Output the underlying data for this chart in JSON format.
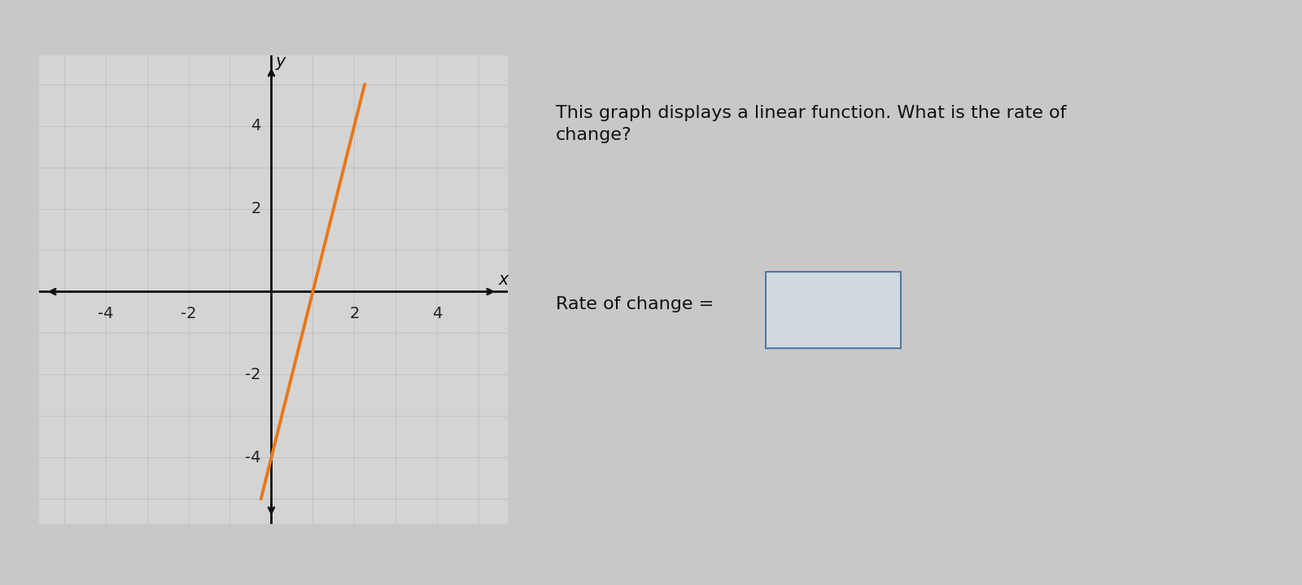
{
  "question_text": "This graph displays a linear function. What is the rate of\nchange?",
  "rate_label": "Rate of change =",
  "slope": 4,
  "y_intercept": -4,
  "x_range": [
    -5,
    5
  ],
  "y_range": [
    -5,
    5
  ],
  "x_ticks": [
    -4,
    -2,
    2,
    4
  ],
  "y_ticks": [
    -4,
    -2,
    2,
    4
  ],
  "line_color": "#E8771A",
  "line_width": 2.8,
  "grid_color": "#bbbbbb",
  "bg_color": "#c8c8c8",
  "card_color": "#d4d4d4",
  "axis_color": "#111111",
  "tick_label_color": "#222222",
  "tick_fontsize": 14,
  "axis_label_fontsize": 15,
  "question_fontsize": 16,
  "rate_fontsize": 16
}
